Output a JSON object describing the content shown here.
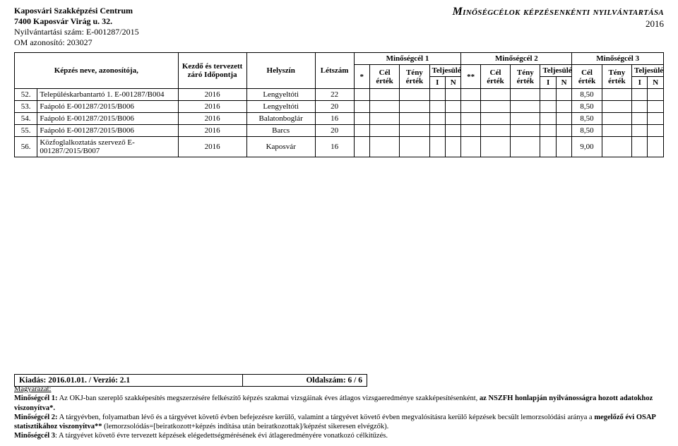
{
  "header": {
    "org1": "Kaposvári Szakképzési Centrum",
    "org2": "7400 Kaposvár Virág u. 32.",
    "reg": "Nyilvántartási szám: E-001287/2015",
    "om": "OM azonosító: 203027",
    "title": "Minőségcélok képzésenkénti nyilvántartása",
    "year": "2016"
  },
  "thead": {
    "name": "Képzés neve, azonosítója,",
    "date": "Kezdő és tervezett záró Időpontja",
    "loc": "Helyszín",
    "count": "Létszám",
    "q1": "Minőségcél 1",
    "q2": "Minőségcél 2",
    "q3": "Minőségcél 3",
    "star": "*",
    "star2": "**",
    "cel": "Cél érték",
    "teny": "Tény érték",
    "telj": "Teljesülés",
    "i": "I",
    "n": "N"
  },
  "rows": [
    {
      "num": "52.",
      "name": "Településkarbantartó 1. E-001287/B004",
      "date": "2016",
      "loc": "Lengyeltóti",
      "count": "22",
      "cel3": "8,50"
    },
    {
      "num": "53.",
      "name": "Faápoló E-001287/2015/B006",
      "date": "2016",
      "loc": "Lengyeltóti",
      "count": "20",
      "cel3": "8,50"
    },
    {
      "num": "54.",
      "name": "Faápoló E-001287/2015/B006",
      "date": "2016",
      "loc": "Balatonboglár",
      "count": "16",
      "cel3": "8,50"
    },
    {
      "num": "55.",
      "name": "Faápoló E-001287/2015/B006",
      "date": "2016",
      "loc": "Barcs",
      "count": "20",
      "cel3": "8,50"
    },
    {
      "num": "56.",
      "name": "Közfoglalkoztatás szervező E-001287/2015/B007",
      "date": "2016",
      "loc": "Kaposvár",
      "count": "16",
      "cel3": "9,00"
    }
  ],
  "footer": {
    "left": "Kiadás: 2016.01.01. / Verzió: 2.1",
    "right": "Oldalszám: 6 / 6"
  },
  "explain": {
    "title": "Magyarázat:",
    "m1a": "Minőségcél 1:",
    "m1b": " Az OKJ-ban szereplő szakképesítés megszerzésére felkészítő képzés szakmai vizsgáinak éves átlagos vizsgaeredménye szakképesítésenként, ",
    "m1c": "az NSZFH honlapján nyilvánosságra hozott adatokhoz viszonyítva*.",
    "m2a": "Minőségcél 2:",
    "m2b": "  A tárgyévben, folyamatban lévő és a tárgyévet követő évben befejezésre kerülő, valamint a tárgyévet követő évben megvalósításra kerülő képzések becsült lemorzsolódási aránya a ",
    "m2c": "megelőző évi OSAP statisztikához viszonyítva**",
    "m2d": " (lemorzsolódás=[beiratkozott+képzés indítása után beiratkozottak]/képzést sikeresen elvégzők).",
    "m3a": "Minőségcél 3",
    "m3b": ": A tárgyévet követő évre tervezett képzések elégedettségmérésének évi átlageredményére vonatkozó célkitűzés."
  }
}
